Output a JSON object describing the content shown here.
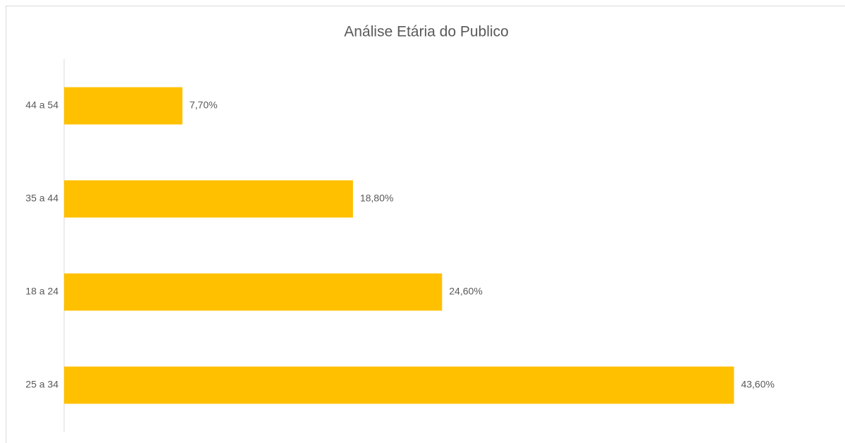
{
  "chart_data": {
    "type": "hbar",
    "title": "Análise Etária do Publico",
    "categories": [
      "44 a 54",
      "35 a 44",
      "18 a 24",
      "25 a 34"
    ],
    "values": [
      7.7,
      18.8,
      24.6,
      43.6
    ],
    "value_labels": [
      "7,70%",
      "18,80%",
      "24,60%",
      "43,60%"
    ],
    "color": "#ffc000",
    "xlim": [
      0,
      50
    ]
  }
}
